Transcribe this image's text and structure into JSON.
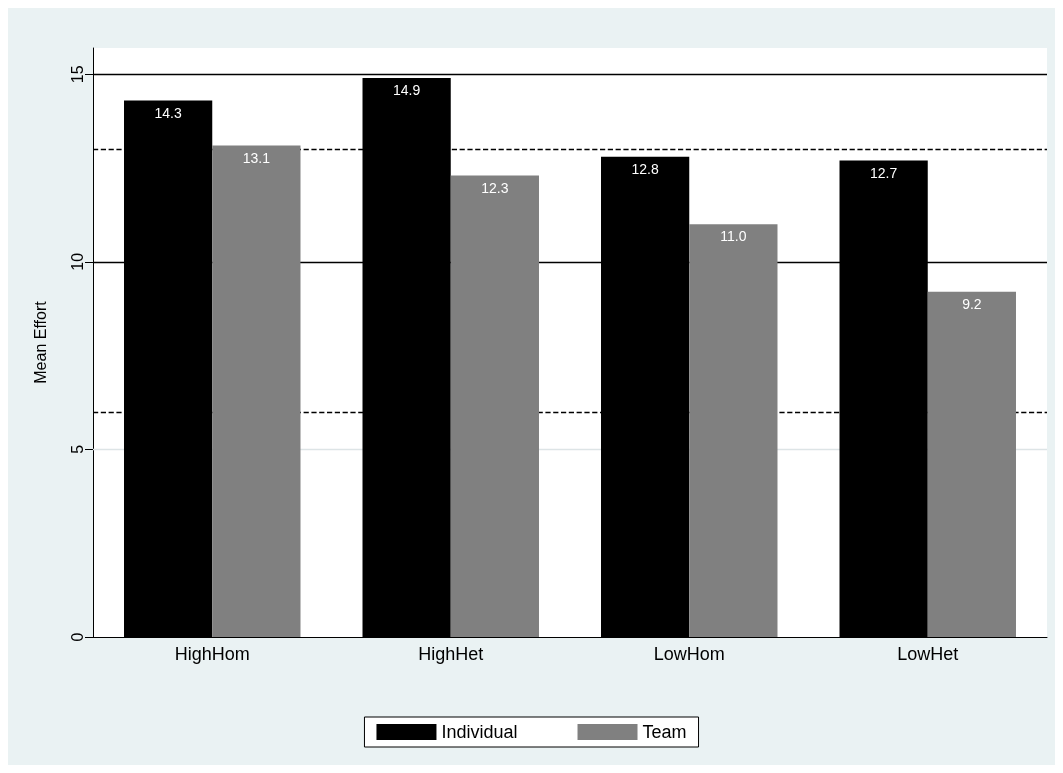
{
  "chart_data": {
    "type": "bar",
    "ylabel": "Mean Effort",
    "categories": [
      "HighHom",
      "HighHet",
      "LowHom",
      "LowHet"
    ],
    "series": [
      {
        "name": "Individual",
        "color": "#000000",
        "values": [
          14.3,
          14.9,
          12.8,
          12.7
        ],
        "value_labels": [
          "14.3",
          "14.9",
          "12.8",
          "12.7"
        ]
      },
      {
        "name": "Team",
        "color": "#808080",
        "values": [
          13.1,
          12.3,
          11.0,
          9.2
        ],
        "value_labels": [
          "13.1",
          "12.3",
          "11.0",
          "9.2"
        ]
      }
    ],
    "ylim": [
      0,
      15.7
    ],
    "yticks": [
      0,
      5,
      10,
      15
    ],
    "legend": "bottom",
    "ref_lines": [
      {
        "axis": "y",
        "value": 15,
        "line_style": "solid",
        "color": "#000000"
      },
      {
        "axis": "y",
        "value": 13,
        "line_style": "dashed",
        "color": "#000000"
      },
      {
        "axis": "y",
        "value": 10,
        "line_style": "solid",
        "color": "#000000"
      },
      {
        "axis": "y",
        "value": 6,
        "line_style": "dashed",
        "color": "#000000"
      },
      {
        "axis": "y",
        "value": 5,
        "line_style": "solid",
        "color": "#dde4e6"
      }
    ]
  }
}
